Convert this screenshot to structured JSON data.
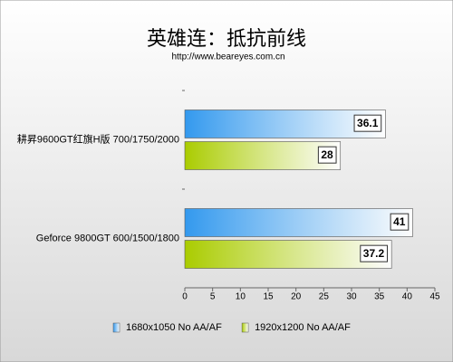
{
  "chart_data": {
    "type": "bar",
    "orientation": "horizontal",
    "title": "英雄连：抵抗前线",
    "subtitle": "http://www.beareyes.com.cn",
    "categories": [
      "耕昇9600GT红旗H版 700/1750/2000",
      "Geforce 9800GT 600/1500/1800"
    ],
    "series": [
      {
        "name": "1680x1050 No AA/AF",
        "color": "#3399ee",
        "values": [
          36.1,
          41
        ]
      },
      {
        "name": "1920x1200 No AA/AF",
        "color": "#aacc00",
        "values": [
          28,
          37.2
        ]
      }
    ],
    "xlim": [
      0,
      45
    ],
    "xticks": [
      0,
      5,
      10,
      15,
      20,
      25,
      30,
      35,
      40,
      45
    ],
    "legend": "bottom"
  }
}
